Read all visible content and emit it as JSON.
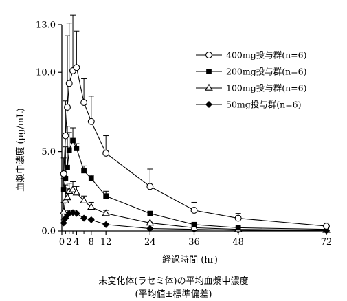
{
  "chart_data": {
    "type": "line",
    "title": "",
    "xlabel": "経過時間 (hr)",
    "ylabel": "血漿中濃度 (μg/mL)",
    "xlim": [
      0,
      72
    ],
    "ylim": [
      0,
      13
    ],
    "xticks": [
      0,
      4,
      8,
      12,
      24,
      36,
      48,
      72
    ],
    "xtick_labels": [
      "0",
      "4",
      "8",
      "12",
      "24",
      "36",
      "48",
      "72"
    ],
    "xminorticks": [
      1,
      2,
      3,
      6
    ],
    "xtick_extra_label": {
      "value": 2,
      "label": "2"
    },
    "yticks": [
      0,
      5,
      10,
      13
    ],
    "ytick_labels": [
      "0.0",
      "5.0",
      "10.0",
      "13.0"
    ],
    "legend_position": "top-right",
    "grid": false,
    "error_bars": "upper",
    "series": [
      {
        "name": "400mg投与群(n=6)",
        "marker": "circle-open",
        "x": [
          0.5,
          1,
          1.5,
          2,
          3,
          4,
          6,
          8,
          12,
          24,
          36,
          48,
          72
        ],
        "y": [
          3.6,
          6.0,
          7.8,
          9.3,
          10.1,
          10.3,
          8.1,
          6.9,
          4.9,
          2.8,
          1.3,
          0.8,
          0.3
        ],
        "err": [
          1.0,
          2.2,
          4.5,
          3.8,
          3.5,
          2.3,
          1.5,
          1.6,
          1.1,
          1.1,
          0.5,
          0.3,
          0.2
        ]
      },
      {
        "name": "200mg投与群(n=6)",
        "marker": "square-filled",
        "x": [
          0.5,
          1,
          1.5,
          2,
          3,
          4,
          6,
          8,
          12,
          24,
          36,
          48,
          72
        ],
        "y": [
          2.6,
          3.3,
          4.0,
          5.1,
          5.7,
          5.2,
          3.8,
          3.3,
          2.2,
          1.1,
          0.4,
          0.2,
          0.1
        ],
        "err": [
          0.7,
          2.0,
          2.6,
          1.1,
          0.8,
          0.3,
          0.3,
          0.2,
          0.3,
          0.1,
          0.1,
          0.05,
          0.05
        ]
      },
      {
        "name": "100mg投与群(n=6)",
        "marker": "triangle-open",
        "x": [
          0.5,
          1,
          1.5,
          2,
          3,
          4,
          6,
          8,
          12,
          24,
          36,
          48,
          72
        ],
        "y": [
          1.2,
          1.9,
          2.1,
          2.5,
          2.6,
          2.4,
          1.9,
          1.5,
          1.1,
          0.5,
          0.2,
          0.1,
          0.05
        ],
        "err": [
          0.6,
          1.0,
          0.6,
          0.5,
          0.5,
          0.4,
          0.3,
          0.3,
          0.2,
          0.05,
          0.05,
          0.03,
          0.02
        ]
      },
      {
        "name": "50mg投与群(n=6)",
        "marker": "diamond-filled",
        "x": [
          0.5,
          1,
          1.5,
          2,
          3,
          4,
          6,
          8,
          12,
          24,
          36,
          48,
          72
        ],
        "y": [
          0.5,
          0.8,
          1.0,
          1.1,
          1.15,
          1.1,
          0.8,
          0.7,
          0.4,
          0.15,
          0.1,
          0.05,
          0.02
        ],
        "err": [
          0.2,
          0.3,
          0.3,
          0.2,
          0.15,
          0.1,
          0.1,
          0.1,
          0.05,
          0.03,
          0.02,
          0.02,
          0.01
        ]
      }
    ]
  },
  "caption": {
    "line1": "未変化体(ラセミ体)の平均血漿中濃度",
    "line2": "(平均値±標準偏差)"
  }
}
